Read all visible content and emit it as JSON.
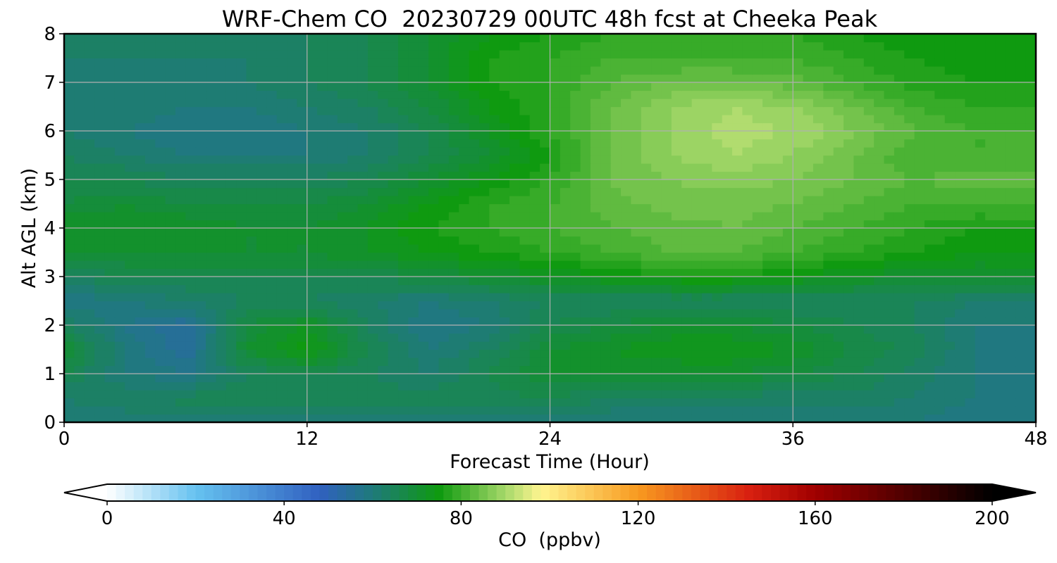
{
  "chart_data": {
    "type": "heatmap",
    "title": "WRF-Chem CO  20230729 00UTC 48h fcst at Cheeka Peak",
    "xlabel": "Forecast Time (Hour)",
    "ylabel": "Alt AGL (km)",
    "xlim": [
      0,
      48
    ],
    "ylim": [
      0,
      8
    ],
    "x_ticks": [
      "0",
      "12",
      "24",
      "36",
      "48"
    ],
    "y_ticks": [
      "0",
      "1",
      "2",
      "3",
      "4",
      "5",
      "6",
      "7",
      "8"
    ],
    "grid": true,
    "x_hours": [
      0,
      3,
      6,
      9,
      12,
      15,
      18,
      21,
      24,
      27,
      30,
      33,
      36,
      39,
      42,
      45,
      48
    ],
    "y_km": [
      0,
      0.5,
      1,
      1.5,
      2,
      2.5,
      3,
      3.5,
      4,
      4.5,
      5,
      5.5,
      6,
      6.5,
      7,
      7.5,
      8
    ],
    "values": [
      [
        60,
        60,
        60,
        60,
        60,
        60,
        60,
        60,
        60,
        60,
        60,
        60,
        60,
        60,
        60,
        58,
        58
      ],
      [
        62,
        64,
        65,
        66,
        66,
        65,
        65,
        65,
        66,
        64,
        63,
        63,
        63,
        63,
        62,
        60,
        59
      ],
      [
        66,
        60,
        58,
        64,
        66,
        64,
        62,
        66,
        70,
        70,
        70,
        70,
        68,
        66,
        63,
        60,
        58
      ],
      [
        70,
        60,
        54,
        70,
        75,
        66,
        60,
        64,
        70,
        72,
        74,
        74,
        72,
        68,
        65,
        60,
        58
      ],
      [
        64,
        58,
        54,
        68,
        72,
        64,
        58,
        60,
        66,
        68,
        70,
        70,
        68,
        66,
        64,
        60,
        60
      ],
      [
        58,
        60,
        62,
        64,
        64,
        62,
        60,
        62,
        64,
        64,
        64,
        64,
        64,
        64,
        64,
        62,
        62
      ],
      [
        64,
        66,
        66,
        66,
        66,
        66,
        68,
        70,
        72,
        74,
        76,
        76,
        74,
        72,
        70,
        70,
        70
      ],
      [
        70,
        70,
        70,
        70,
        70,
        72,
        74,
        76,
        78,
        80,
        82,
        82,
        80,
        78,
        76,
        74,
        74
      ],
      [
        72,
        72,
        72,
        70,
        70,
        72,
        76,
        78,
        80,
        82,
        83,
        84,
        82,
        80,
        78,
        76,
        76
      ],
      [
        68,
        70,
        68,
        68,
        68,
        70,
        74,
        78,
        80,
        83,
        85,
        85,
        84,
        82,
        80,
        80,
        80
      ],
      [
        66,
        66,
        64,
        64,
        64,
        66,
        70,
        74,
        78,
        84,
        86,
        87,
        86,
        84,
        82,
        83,
        84
      ],
      [
        64,
        62,
        60,
        60,
        60,
        62,
        66,
        70,
        76,
        84,
        88,
        90,
        88,
        84,
        80,
        80,
        80
      ],
      [
        62,
        60,
        58,
        58,
        60,
        62,
        66,
        72,
        78,
        84,
        88,
        91,
        90,
        86,
        82,
        80,
        80
      ],
      [
        62,
        62,
        60,
        60,
        62,
        64,
        68,
        74,
        78,
        84,
        88,
        90,
        88,
        84,
        80,
        78,
        78
      ],
      [
        60,
        60,
        60,
        62,
        64,
        66,
        70,
        76,
        78,
        82,
        84,
        84,
        83,
        80,
        77,
        76,
        76
      ],
      [
        62,
        62,
        62,
        62,
        64,
        66,
        70,
        76,
        78,
        80,
        80,
        80,
        80,
        78,
        76,
        75,
        75
      ],
      [
        64,
        64,
        64,
        64,
        64,
        66,
        70,
        74,
        76,
        78,
        78,
        78,
        78,
        76,
        74,
        74,
        74
      ]
    ],
    "colorbar": {
      "label": "CO  (ppbv)",
      "min": 0,
      "max": 200,
      "ticks": [
        "0",
        "40",
        "80",
        "120",
        "160",
        "200"
      ],
      "extend": "both",
      "stops": [
        [
          0,
          "#ffffff"
        ],
        [
          20,
          "#66c2f0"
        ],
        [
          48,
          "#3060c0"
        ],
        [
          60,
          "#1f7a7a"
        ],
        [
          75,
          "#0f9a10"
        ],
        [
          90,
          "#a6d86a"
        ],
        [
          98,
          "#fff590"
        ],
        [
          120,
          "#f89a20"
        ],
        [
          145,
          "#d82010"
        ],
        [
          160,
          "#a00000"
        ],
        [
          200,
          "#000000"
        ]
      ]
    }
  }
}
